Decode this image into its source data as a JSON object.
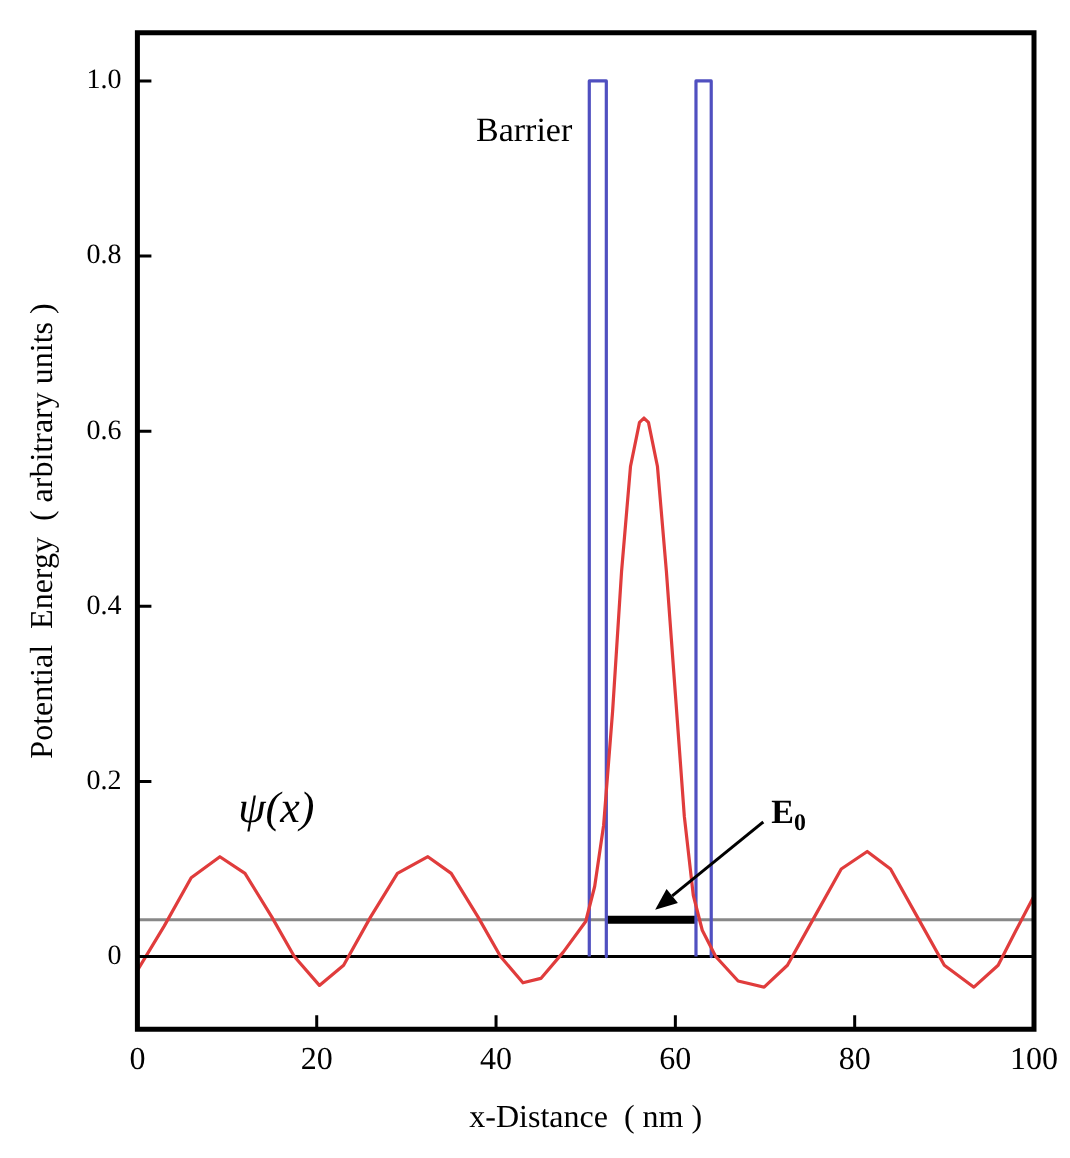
{
  "chart_data": {
    "type": "line",
    "xlabel": "x-Distance  ( nm )",
    "ylabel": "Potential  Energy  ( arbitrary units )",
    "xlim": [
      0,
      100
    ],
    "ylim": [
      -0.083,
      1.055
    ],
    "xticks": [
      0,
      20,
      40,
      60,
      80,
      100
    ],
    "yticks": [
      0,
      0.2,
      0.4,
      0.6,
      0.8,
      {
        "value": 1,
        "label": "1.0"
      }
    ],
    "grid": false,
    "legend": false,
    "marker": "none",
    "line_style": "solid",
    "series": [
      {
        "color": "#e03c3c",
        "x": [
          0,
          3,
          6,
          9.2,
          12,
          15,
          17.5,
          20.3,
          23,
          26,
          29,
          32.4,
          35,
          38,
          40.5,
          43,
          45,
          47.5,
          50,
          51,
          52,
          53,
          54,
          55,
          56,
          56.5,
          57,
          58,
          59,
          60,
          61,
          62,
          63,
          64.5,
          67,
          69.9,
          72.5,
          75.5,
          78.5,
          81.4,
          84,
          87,
          90,
          93.3,
          96,
          98,
          100
        ],
        "values": [
          -0.016,
          0.035,
          0.09,
          0.114,
          0.095,
          0.045,
          0.0,
          -0.033,
          -0.01,
          0.045,
          0.095,
          0.114,
          0.095,
          0.045,
          0.0,
          -0.03,
          -0.025,
          0.005,
          0.04,
          0.08,
          0.15,
          0.28,
          0.44,
          0.56,
          0.61,
          0.615,
          0.61,
          0.56,
          0.44,
          0.3,
          0.16,
          0.07,
          0.03,
          0.0,
          -0.028,
          -0.035,
          -0.01,
          0.045,
          0.1,
          0.12,
          0.1,
          0.045,
          -0.01,
          -0.035,
          -0.01,
          0.03,
          0.069
        ]
      },
      {
        "color": "#5050c0",
        "x": [
          50.4,
          50.4,
          52.3,
          52.3
        ],
        "values": [
          0,
          1,
          1,
          0
        ]
      },
      {
        "color": "#5050c0",
        "x": [
          62.3,
          62.3,
          64,
          64
        ],
        "values": [
          0,
          1,
          1,
          0
        ]
      },
      {
        "color": "#000000",
        "x": [
          52.3,
          62.3
        ],
        "values": [
          0.042,
          0.042
        ]
      }
    ],
    "ref_lines": [
      {
        "axis": "y",
        "value": 0.042,
        "color": "#888888"
      },
      {
        "axis": "y",
        "value": 0,
        "color": "#000000"
      }
    ],
    "annotations": [
      "Barrier",
      "ψ(x)",
      "E$_{0}$"
    ]
  }
}
